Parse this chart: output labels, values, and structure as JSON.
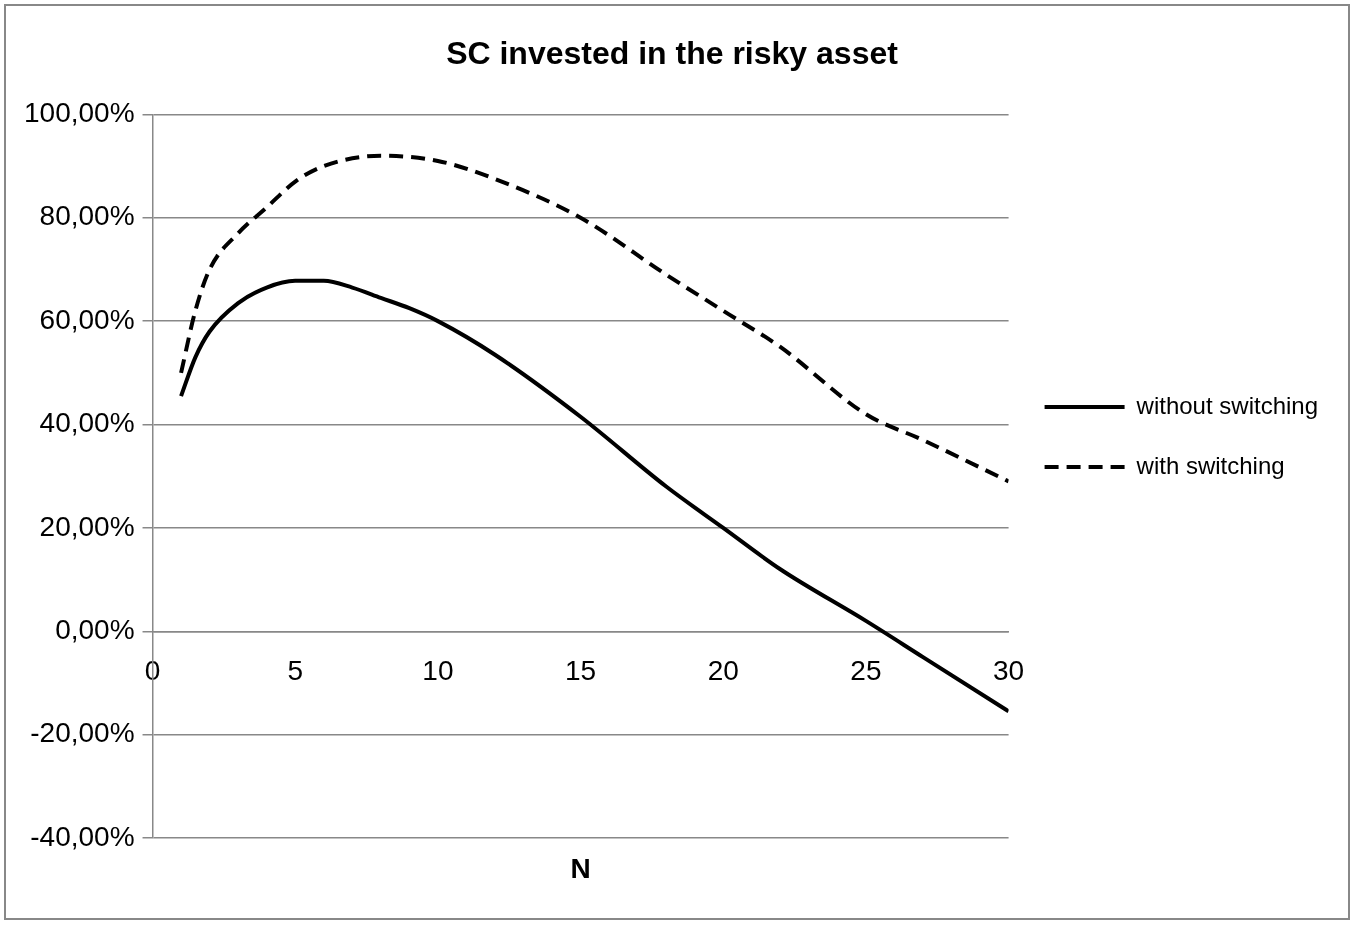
{
  "chart_data": {
    "type": "line",
    "title": "SC invested in the risky asset",
    "xlabel": "N",
    "xlim": [
      0,
      30
    ],
    "xticks": [
      0,
      5,
      10,
      15,
      20,
      25,
      30
    ],
    "ylim": [
      -40,
      100
    ],
    "yticks": [
      {
        "value": -40,
        "label": "-40,00%"
      },
      {
        "value": -20,
        "label": "-20,00%"
      },
      {
        "value": 0,
        "label": "0,00%"
      },
      {
        "value": 20,
        "label": "20,00%"
      },
      {
        "value": 40,
        "label": "40,00%"
      },
      {
        "value": 60,
        "label": "60,00%"
      },
      {
        "value": 80,
        "label": "80,00%"
      },
      {
        "value": 100,
        "label": "100,00%"
      }
    ],
    "grid": "y",
    "legend": "right",
    "marker": "none",
    "series": [
      {
        "name": "without switching",
        "color": "#000000",
        "line_style": "solid",
        "x": [
          1,
          1.5,
          2,
          3,
          4,
          5,
          6,
          7,
          8,
          9,
          10,
          12,
          15,
          18,
          20,
          22,
          25,
          27,
          30
        ],
        "values": [
          45.5,
          53,
          58,
          63.5,
          66.5,
          67.8,
          67.8,
          66.5,
          64.5,
          62.5,
          60,
          53.5,
          41.5,
          28,
          20,
          12,
          2,
          -5,
          -15.5
        ]
      },
      {
        "name": "with switching",
        "color": "#000000",
        "line_style": "dashed",
        "x": [
          1,
          1.5,
          2,
          3,
          4,
          5,
          6,
          8,
          10,
          12,
          15,
          18,
          20,
          22,
          25,
          27,
          30
        ],
        "values": [
          50,
          62,
          70,
          77,
          82,
          87,
          90,
          92,
          91,
          87.5,
          80,
          69,
          62,
          55,
          42,
          37,
          29
        ]
      }
    ]
  }
}
